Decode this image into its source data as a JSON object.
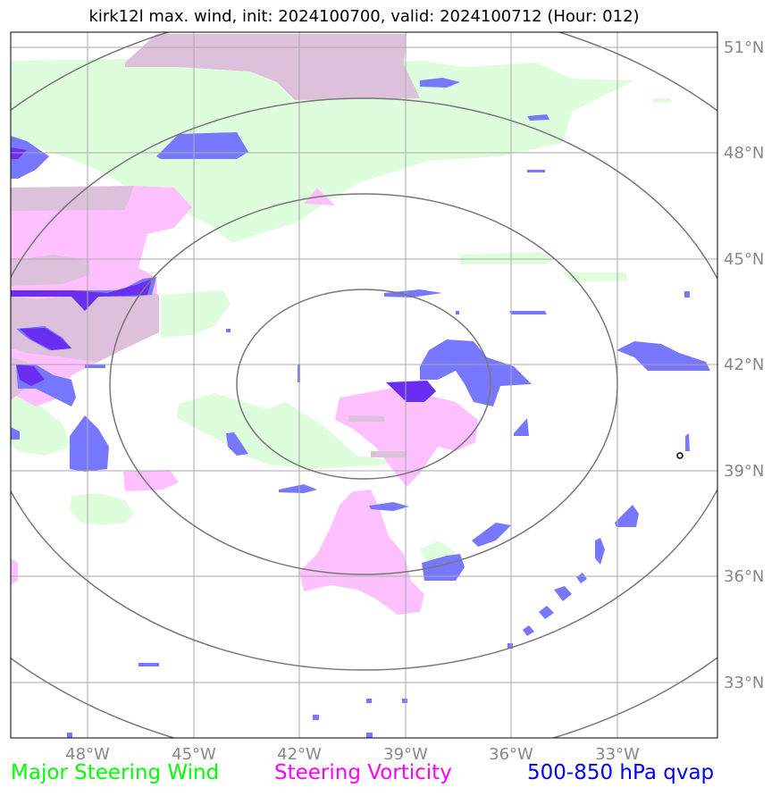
{
  "title": "kirk12l max. wind, init: 2024100700, valid: 2024100712 (Hour: 012)",
  "lat_labels": [
    "51°N",
    "48°N",
    "45°N",
    "42°N",
    "39°N",
    "36°N",
    "33°N"
  ],
  "lon_labels": [
    "48°W",
    "45°W",
    "42°W",
    "39°W",
    "36°W",
    "33°W"
  ],
  "legend": {
    "wind": {
      "label": "Major Steering Wind",
      "color": "#00ff00"
    },
    "vorticity": {
      "label": "Steering Vorticity",
      "color": "#ff00ff"
    },
    "qvap": {
      "label": "500-850 hPa qvap",
      "color": "#0000ff"
    }
  },
  "colors": {
    "wind_fill": "#ddfddd",
    "vorticity_fill": "#ffc0ff",
    "overlap_fill": "#dcc0dc",
    "qvap_fill": "#7777ff",
    "qvap_dark": "#6a2ef0",
    "grid": "#aaaaaa",
    "range_rings": "#777777"
  }
}
